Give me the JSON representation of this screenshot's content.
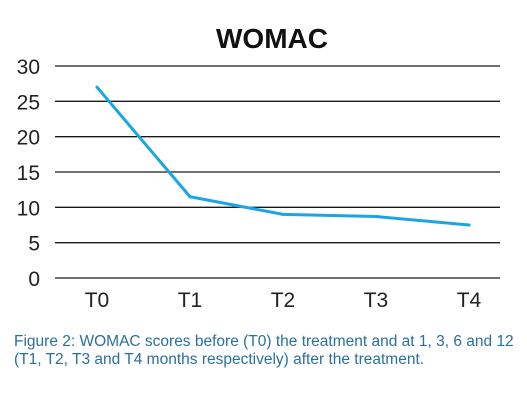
{
  "chart_data": {
    "type": "line",
    "title": "WOMAC",
    "categories": [
      "T0",
      "T1",
      "T2",
      "T3",
      "T4"
    ],
    "series": [
      {
        "values": [
          27,
          11.5,
          9,
          8.7,
          7.5
        ],
        "color": "#1aa6e4"
      }
    ],
    "ylim": [
      0,
      30
    ],
    "yticks": [
      0,
      5,
      10,
      15,
      20,
      25,
      30
    ],
    "grid": true,
    "xlabel": "",
    "ylabel": ""
  },
  "caption": "Figure 2: WOMAC scores before (T0) the treatment and at 1, 3, 6 and 12 (T1, T2, T3 and T4 months respectively) after the treatment."
}
